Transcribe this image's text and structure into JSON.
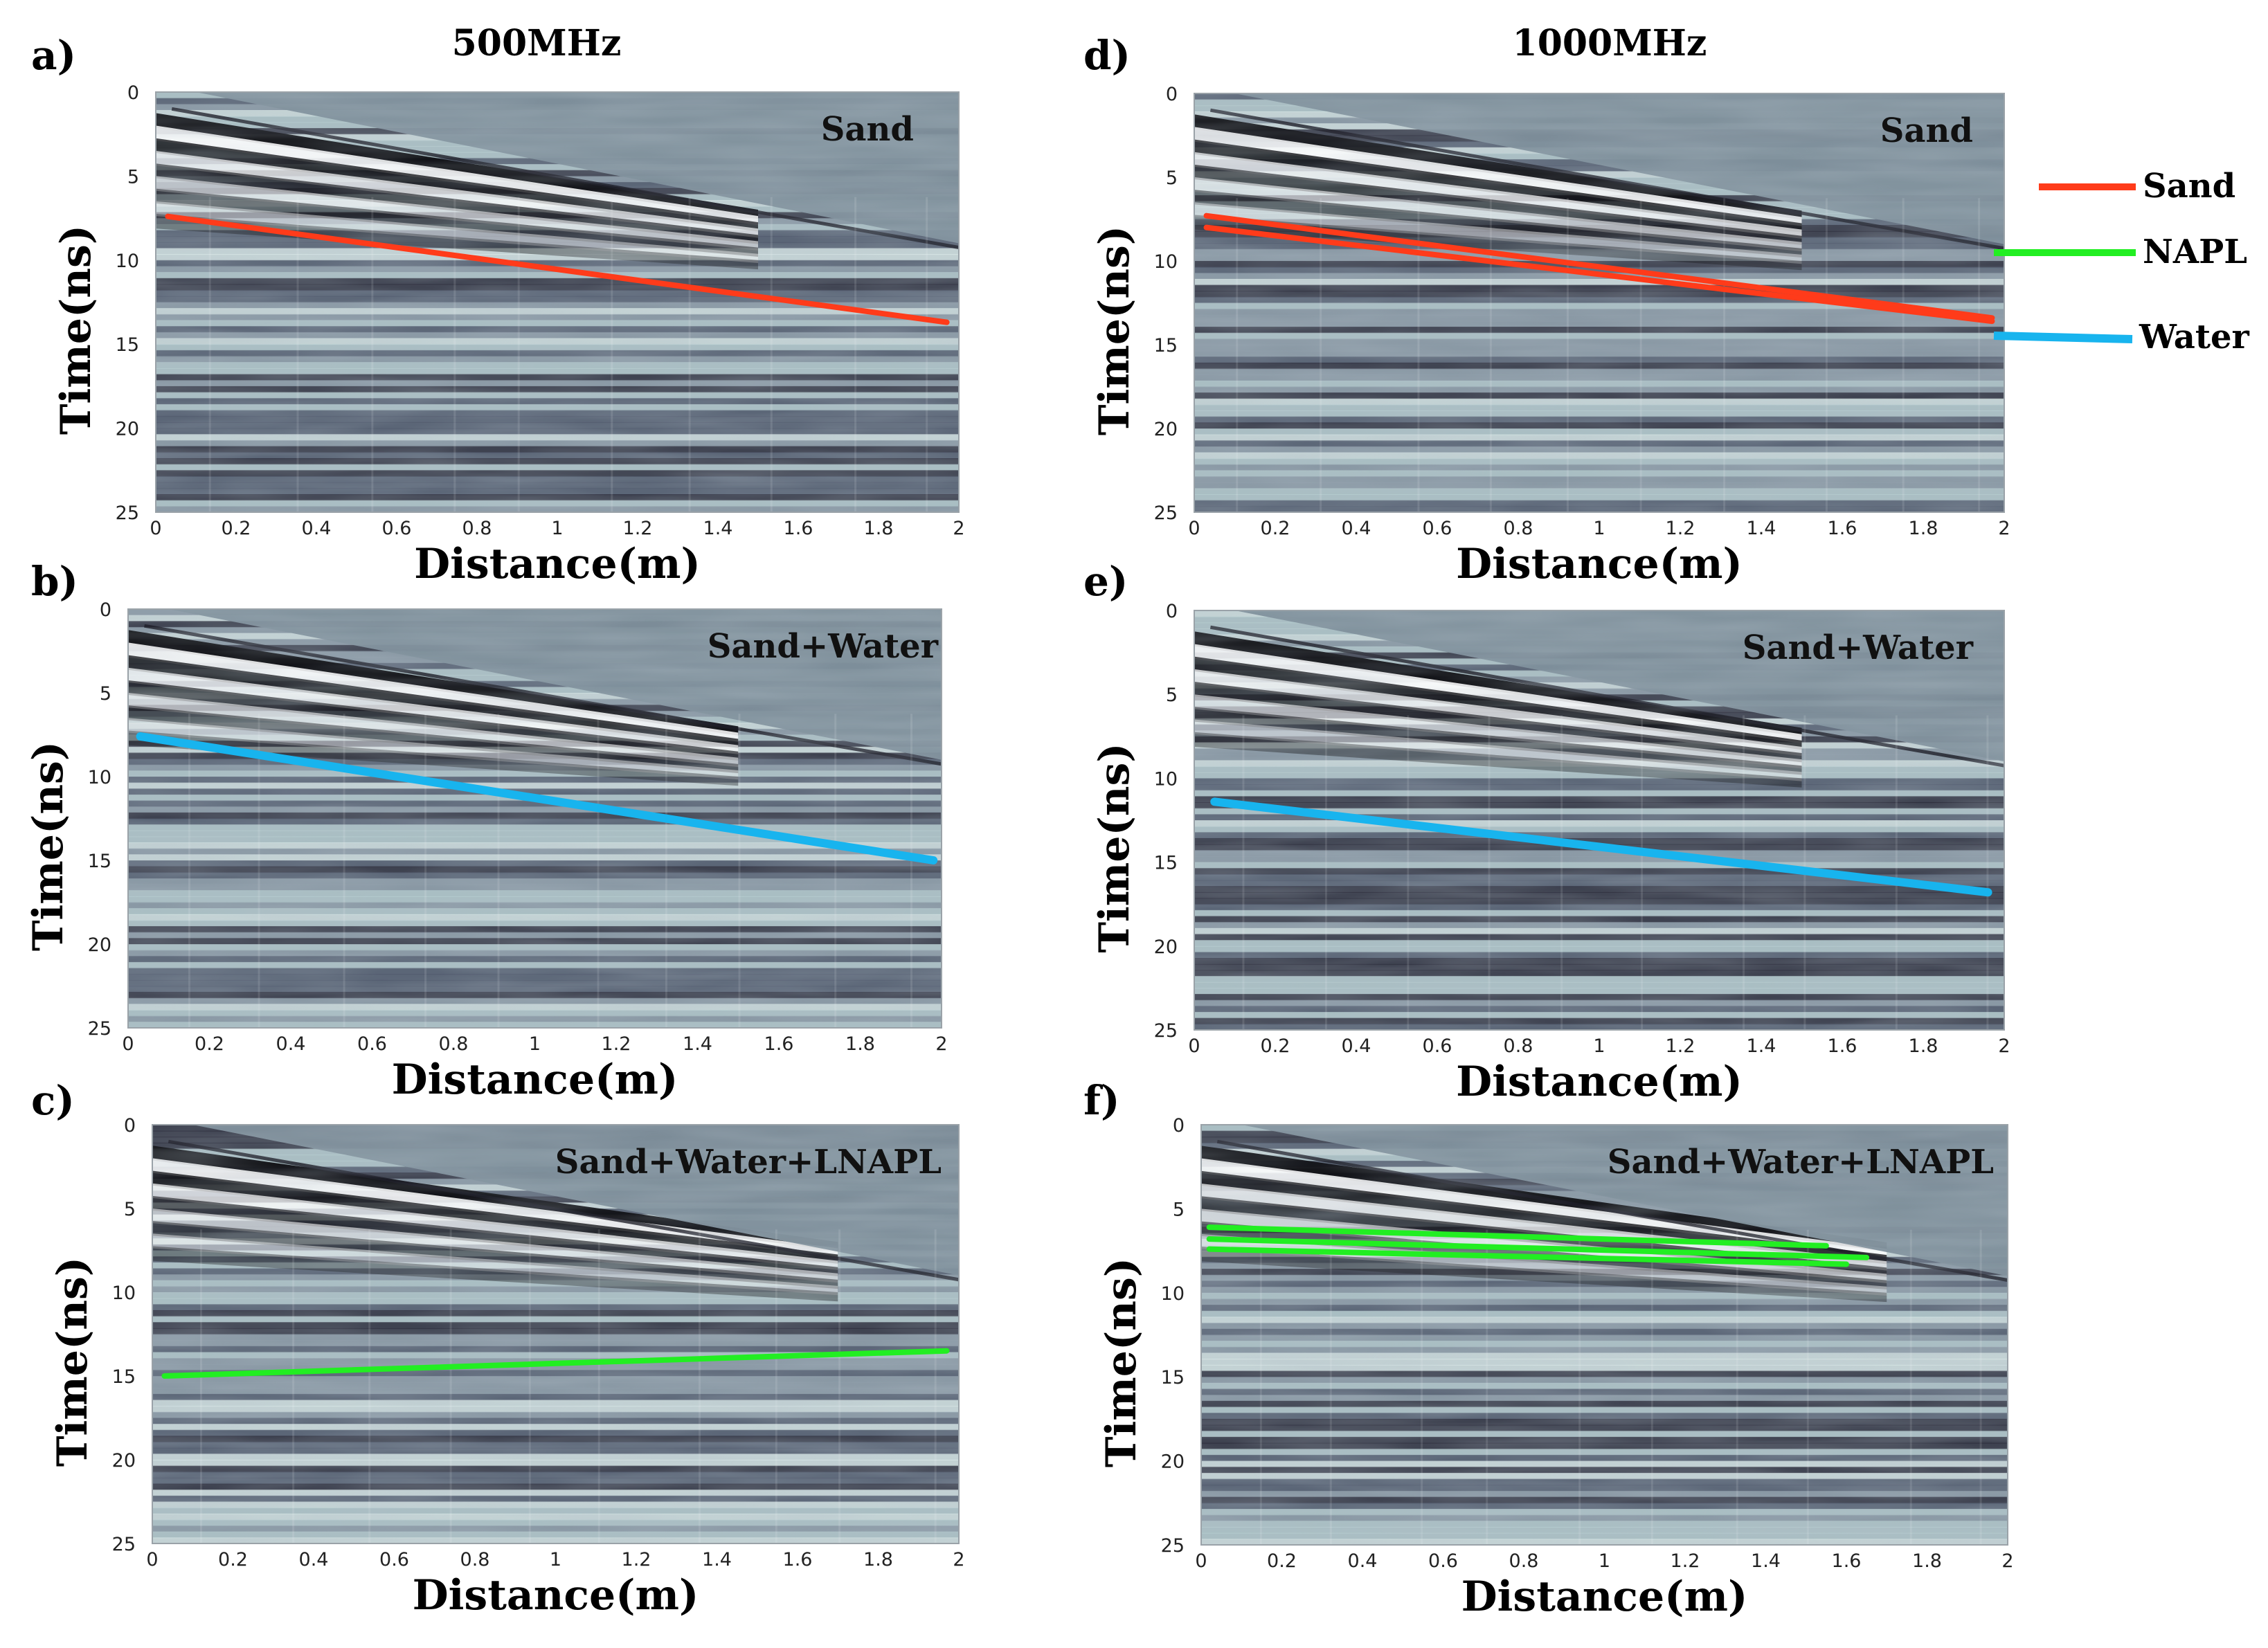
{
  "figure": {
    "column_titles": [
      "500MHz",
      "1000MHz"
    ]
  },
  "legend": {
    "entries": [
      {
        "label": "Sand",
        "color": "#ff3b1a"
      },
      {
        "label": "NAPL",
        "color": "#22ee22"
      },
      {
        "label": "Water",
        "color": "#18b4ee"
      }
    ]
  },
  "chart_data": [
    {
      "type": "heatmap",
      "panel": "a)",
      "label": "Sand",
      "xlabel": "Distance(m)",
      "ylabel": "Time(ns)",
      "xlim": [
        0,
        2
      ],
      "ylim": [
        0,
        25
      ],
      "xticks": [
        "0",
        "0.2",
        "0.4",
        "0.6",
        "0.8",
        "1",
        "1.2",
        "1.4",
        "1.6",
        "1.8",
        "2"
      ],
      "yticks": [
        "0",
        "5",
        "10",
        "15",
        "20",
        "25"
      ],
      "picks": [
        {
          "name": "Sand",
          "color": "#ff3b1a",
          "x": [
            0.03,
            1.97
          ],
          "y": [
            7.4,
            13.7
          ]
        }
      ]
    },
    {
      "type": "heatmap",
      "panel": "b)",
      "label": "Sand+Water",
      "xlabel": "Distance(m)",
      "ylabel": "Time(ns)",
      "xlim": [
        0,
        2
      ],
      "ylim": [
        0,
        25
      ],
      "xticks": [
        "0",
        "0.2",
        "0.4",
        "0.6",
        "0.8",
        "1",
        "1.2",
        "1.4",
        "1.6",
        "1.8",
        "2"
      ],
      "yticks": [
        "0",
        "5",
        "10",
        "15",
        "20",
        "25"
      ],
      "picks": [
        {
          "name": "Water",
          "color": "#18b4ee",
          "x": [
            0.03,
            1.98
          ],
          "y": [
            7.6,
            15.0
          ]
        }
      ]
    },
    {
      "type": "heatmap",
      "panel": "c)",
      "label": "Sand+Water+LNAPL",
      "xlabel": "Distance(m)",
      "ylabel": "Time(ns)",
      "xlim": [
        0,
        2
      ],
      "ylim": [
        0,
        25
      ],
      "xticks": [
        "0",
        "0.2",
        "0.4",
        "0.6",
        "0.8",
        "1",
        "1.2",
        "1.4",
        "1.6",
        "1.8",
        "2"
      ],
      "yticks": [
        "0",
        "5",
        "10",
        "15",
        "20",
        "25"
      ],
      "picks": [
        {
          "name": "NAPL",
          "color": "#22ee22",
          "x": [
            0.03,
            1.97
          ],
          "y": [
            15.0,
            13.5
          ]
        }
      ]
    },
    {
      "type": "heatmap",
      "panel": "d)",
      "label": "Sand",
      "xlabel": "Distance(m)",
      "ylabel": "Time(ns)",
      "xlim": [
        0,
        2
      ],
      "ylim": [
        0,
        25
      ],
      "xticks": [
        "0",
        "0.2",
        "0.4",
        "0.6",
        "0.8",
        "1",
        "1.2",
        "1.4",
        "1.6",
        "1.8",
        "2"
      ],
      "yticks": [
        "0",
        "5",
        "10",
        "15",
        "20",
        "25"
      ],
      "picks": [
        {
          "name": "Sand",
          "color": "#ff3b1a",
          "x": [
            0.03,
            1.97
          ],
          "y": [
            7.3,
            13.4
          ]
        },
        {
          "name": "Sand",
          "color": "#ff3b1a",
          "x": [
            0.03,
            1.97
          ],
          "y": [
            8.0,
            13.6
          ]
        }
      ]
    },
    {
      "type": "heatmap",
      "panel": "e)",
      "label": "Sand+Water",
      "xlabel": "Distance(m)",
      "ylabel": "Time(ns)",
      "xlim": [
        0,
        2
      ],
      "ylim": [
        0,
        25
      ],
      "xticks": [
        "0",
        "0.2",
        "0.4",
        "0.6",
        "0.8",
        "1",
        "1.2",
        "1.4",
        "1.6",
        "1.8",
        "2"
      ],
      "yticks": [
        "0",
        "5",
        "10",
        "15",
        "20",
        "25"
      ],
      "picks": [
        {
          "name": "Water",
          "color": "#18b4ee",
          "x": [
            0.05,
            1.96
          ],
          "y": [
            11.4,
            16.8
          ]
        }
      ]
    },
    {
      "type": "heatmap",
      "panel": "f)",
      "label": "Sand+Water+LNAPL",
      "xlabel": "Distance(m)",
      "ylabel": "Time(ns)",
      "xlim": [
        0,
        2
      ],
      "ylim": [
        0,
        25
      ],
      "xticks": [
        "0",
        "0.2",
        "0.4",
        "0.6",
        "0.8",
        "1",
        "1.2",
        "1.4",
        "1.6",
        "1.8",
        "2"
      ],
      "yticks": [
        "0",
        "5",
        "10",
        "15",
        "20",
        "25"
      ],
      "picks": [
        {
          "name": "NAPL",
          "color": "#22ee22",
          "x": [
            0.02,
            1.55
          ],
          "y": [
            6.1,
            7.2
          ]
        },
        {
          "name": "NAPL",
          "color": "#22ee22",
          "x": [
            0.02,
            1.65
          ],
          "y": [
            6.8,
            7.9
          ]
        },
        {
          "name": "NAPL",
          "color": "#22ee22",
          "x": [
            0.02,
            1.6
          ],
          "y": [
            7.4,
            8.3
          ]
        }
      ]
    }
  ]
}
